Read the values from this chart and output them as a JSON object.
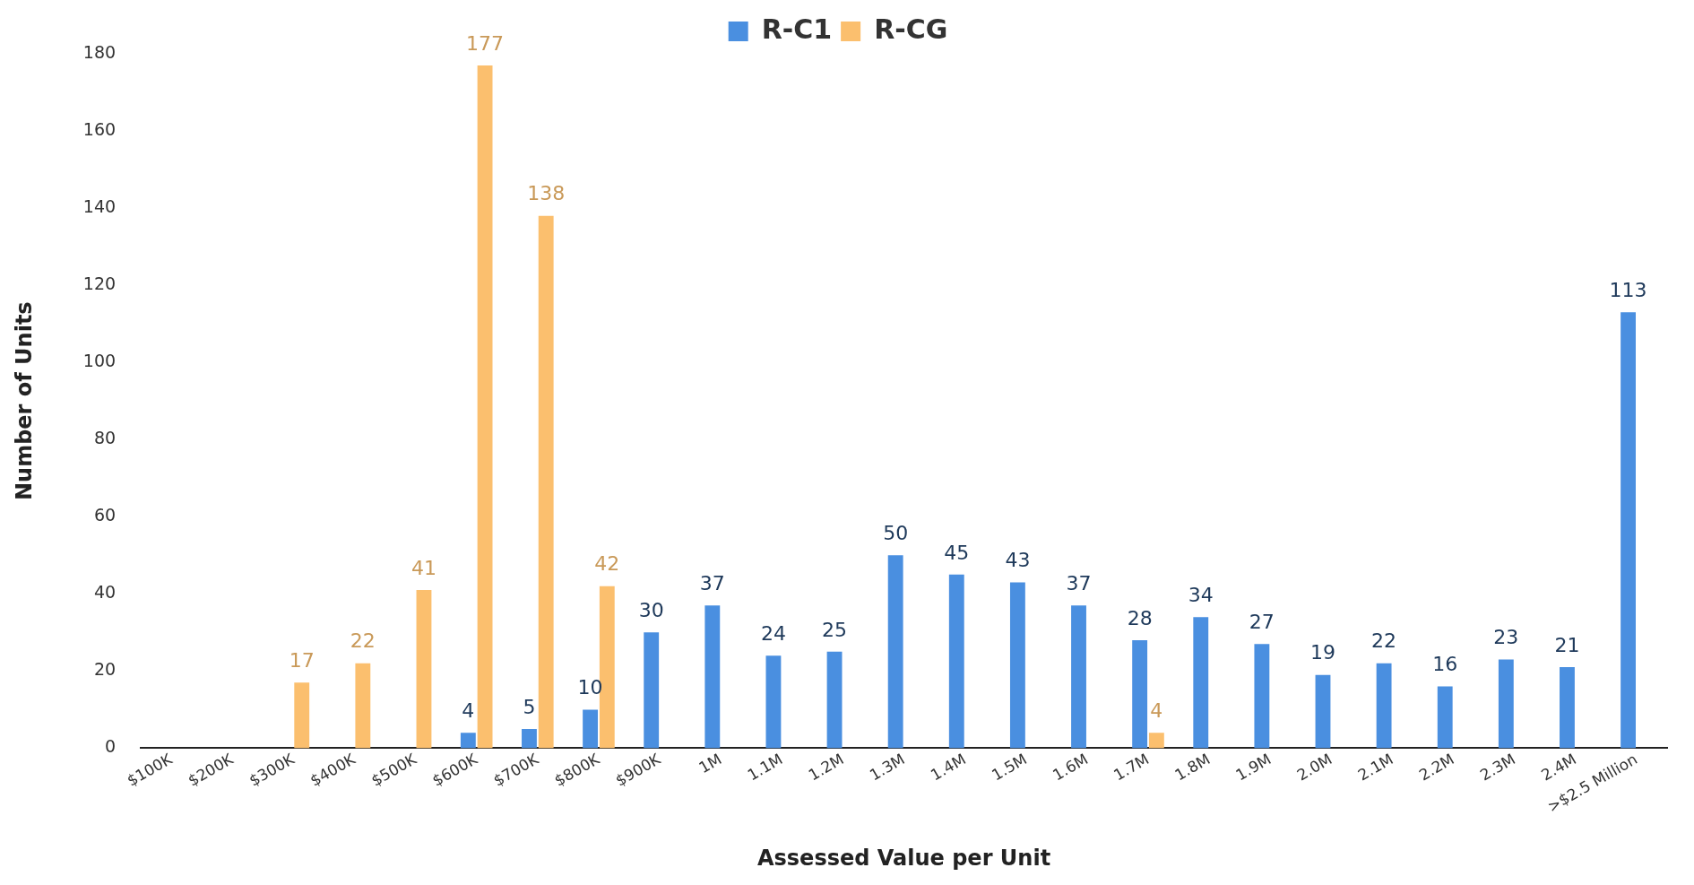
{
  "chart_data": {
    "type": "bar",
    "xlabel": "Assessed Value per Unit",
    "ylabel": "Number of Units",
    "categories": [
      "$100K",
      "$200K",
      "$300K",
      "$400K",
      "$500K",
      "$600K",
      "$700K",
      "$800K",
      "$900K",
      "1M",
      "1.1M",
      "1.2M",
      "1.3M",
      "1.4M",
      "1.5M",
      "1.6M",
      "1.7M",
      "1.8M",
      "1.9M",
      "2.0M",
      "2.1M",
      "2.2M",
      "2.3M",
      "2.4M",
      ">$2.5 Million"
    ],
    "series": [
      {
        "name": "R-C1",
        "color": "#4a8fe0",
        "values": [
          null,
          null,
          null,
          null,
          null,
          4,
          5,
          10,
          30,
          37,
          24,
          25,
          50,
          45,
          43,
          37,
          28,
          34,
          27,
          19,
          22,
          16,
          23,
          21,
          113
        ]
      },
      {
        "name": "R-CG",
        "color": "#fbbf6e",
        "values": [
          null,
          null,
          17,
          22,
          41,
          177,
          138,
          42,
          null,
          null,
          null,
          null,
          null,
          null,
          null,
          null,
          4,
          null,
          null,
          null,
          null,
          null,
          null,
          null,
          null
        ]
      }
    ],
    "ylim": [
      0,
      180
    ],
    "yticks": [
      0,
      20,
      40,
      60,
      80,
      100,
      120,
      140,
      160,
      180
    ],
    "grid": false,
    "legend": "top",
    "data_labels": true
  }
}
